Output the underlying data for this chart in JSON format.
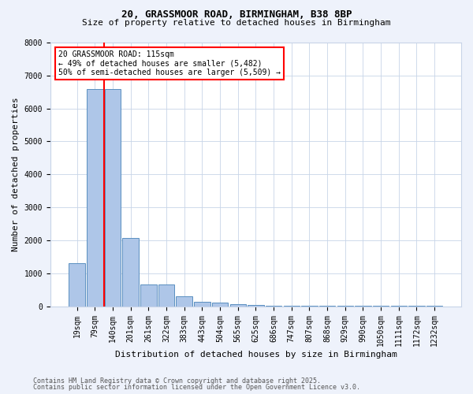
{
  "title1": "20, GRASSMOOR ROAD, BIRMINGHAM, B38 8BP",
  "title2": "Size of property relative to detached houses in Birmingham",
  "xlabel": "Distribution of detached houses by size in Birmingham",
  "ylabel": "Number of detached properties",
  "categories": [
    "19sqm",
    "79sqm",
    "140sqm",
    "201sqm",
    "261sqm",
    "322sqm",
    "383sqm",
    "443sqm",
    "504sqm",
    "565sqm",
    "625sqm",
    "686sqm",
    "747sqm",
    "807sqm",
    "868sqm",
    "929sqm",
    "990sqm",
    "1050sqm",
    "1111sqm",
    "1172sqm",
    "1232sqm"
  ],
  "bar_values": [
    1300,
    6600,
    6600,
    2080,
    650,
    650,
    300,
    130,
    110,
    60,
    45,
    5,
    5,
    5,
    5,
    5,
    5,
    5,
    5,
    5,
    5
  ],
  "bar_color": "#aec6e8",
  "bar_edge_color": "#5a8fc0",
  "vline_x_index": 2,
  "vline_color": "red",
  "annotation_title": "20 GRASSMOOR ROAD: 115sqm",
  "annotation_line2": "← 49% of detached houses are smaller (5,482)",
  "annotation_line3": "50% of semi-detached houses are larger (5,509) →",
  "annotation_box_color": "white",
  "annotation_box_edge": "red",
  "ylim": [
    0,
    8000
  ],
  "yticks": [
    0,
    1000,
    2000,
    3000,
    4000,
    5000,
    6000,
    7000,
    8000
  ],
  "footnote1": "Contains HM Land Registry data © Crown copyright and database right 2025.",
  "footnote2": "Contains public sector information licensed under the Open Government Licence v3.0.",
  "bg_color": "#eef2fb",
  "plot_bg_color": "#ffffff",
  "grid_color": "#c8d4e8",
  "title1_fontsize": 9,
  "title2_fontsize": 8,
  "tick_fontsize": 7,
  "ylabel_fontsize": 8,
  "xlabel_fontsize": 8,
  "annot_fontsize": 7,
  "footnote_fontsize": 6
}
